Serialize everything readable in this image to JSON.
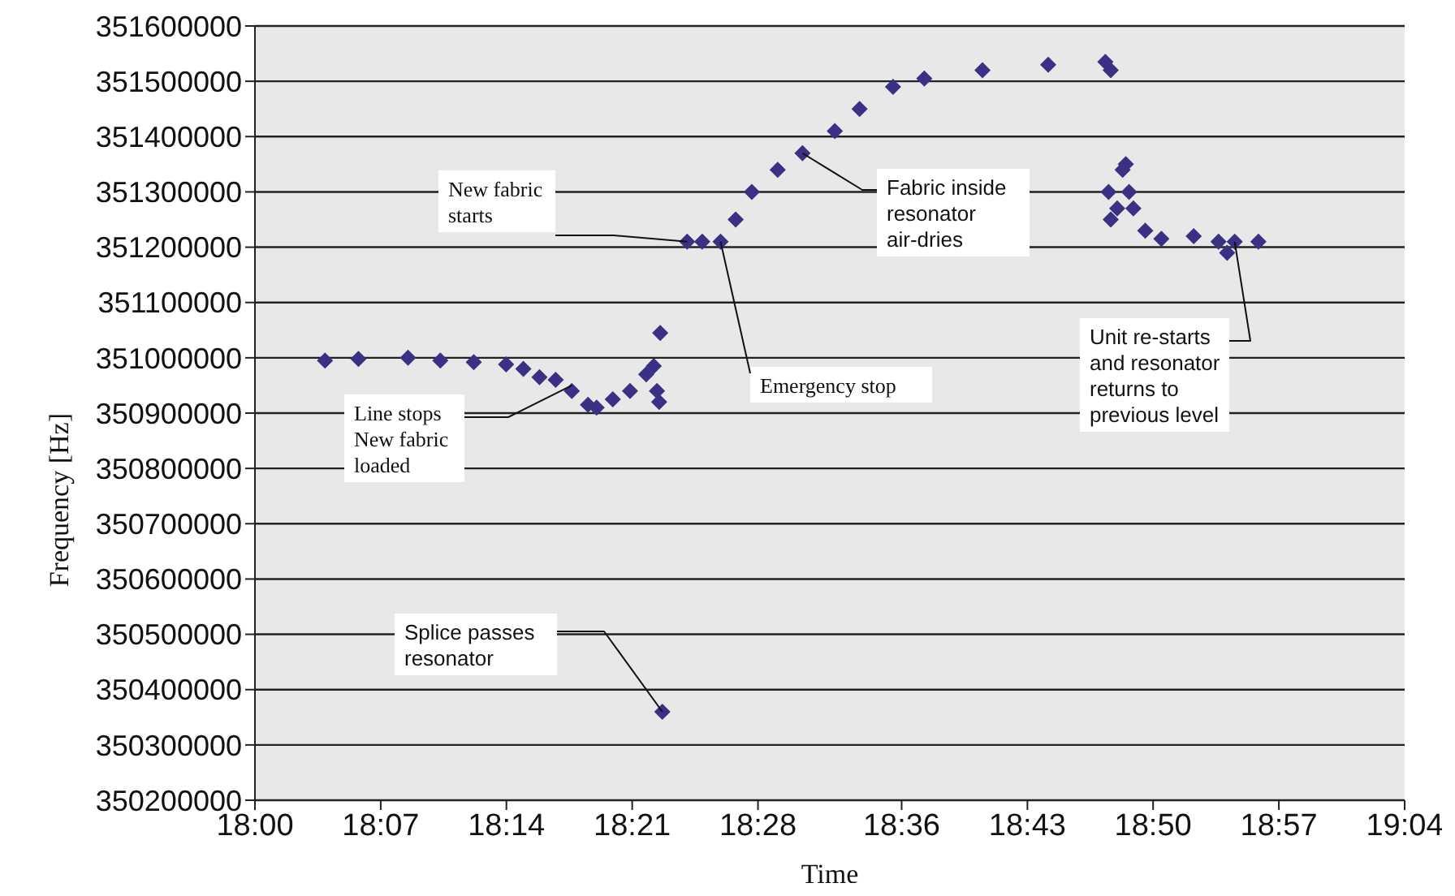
{
  "chart_data": {
    "type": "scatter",
    "xlabel": "Time",
    "ylabel": "Frequency [Hz]",
    "marker": "diamond",
    "grid": "y",
    "legend": false,
    "xlim": [
      18,
      19.0667
    ],
    "xticks": [
      {
        "value": 18,
        "label": "18:00"
      },
      {
        "value": 18.1167,
        "label": "18:07"
      },
      {
        "value": 18.2333,
        "label": "18:14"
      },
      {
        "value": 18.35,
        "label": "18:21"
      },
      {
        "value": 18.4667,
        "label": "18:28"
      },
      {
        "value": 18.6,
        "label": "18:36"
      },
      {
        "value": 18.7167,
        "label": "18:43"
      },
      {
        "value": 18.8333,
        "label": "18:50"
      },
      {
        "value": 18.95,
        "label": "18:57"
      },
      {
        "value": 19.0667,
        "label": "19:04"
      }
    ],
    "ylim": [
      350200000,
      351600000
    ],
    "yticks": [
      350200000,
      350300000,
      350400000,
      350500000,
      350600000,
      350700000,
      350800000,
      350900000,
      351000000,
      351100000,
      351200000,
      351300000,
      351400000,
      351500000,
      351600000
    ],
    "series": [
      {
        "color": "#3a3185",
        "x": [
          18.065,
          18.096,
          18.142,
          18.172,
          18.203,
          18.233,
          18.249,
          18.264,
          18.279,
          18.294,
          18.309,
          18.317,
          18.332,
          18.348,
          18.363,
          18.37,
          18.373,
          18.375,
          18.376,
          18.378,
          18.401,
          18.415,
          18.432,
          18.446,
          18.461,
          18.485,
          18.508,
          18.538,
          18.561,
          18.592,
          18.621,
          18.675,
          18.736,
          18.789,
          18.794,
          18.792,
          18.794,
          18.8,
          18.805,
          18.808,
          18.811,
          18.815,
          18.826,
          18.841,
          18.871,
          18.894,
          18.902,
          18.909,
          18.931
        ],
        "values": [
          350995000,
          350998000,
          351000000,
          350995000,
          350992000,
          350988000,
          350980000,
          350965000,
          350960000,
          350940000,
          350915000,
          350910000,
          350925000,
          350940000,
          350970000,
          350985000,
          350940000,
          350920000,
          351045000,
          350360000,
          351210000,
          351210000,
          351210000,
          351250000,
          351300000,
          351340000,
          351370000,
          351410000,
          351450000,
          351490000,
          351505000,
          351520000,
          351530000,
          351535000,
          351520000,
          351300000,
          351250000,
          351270000,
          351340000,
          351350000,
          351300000,
          351270000,
          351230000,
          351215000,
          351220000,
          351210000,
          351190000,
          351210000,
          351210000
        ]
      }
    ],
    "annotations": [
      {
        "text": "New fabric\nstarts",
        "x": 18.401,
        "y": 351210000
      },
      {
        "text": "Line stops\nNew fabric\nloaded",
        "x": 18.294,
        "y": 350950000
      },
      {
        "text": "Emergency stop",
        "x": 18.432,
        "y": 351210000
      },
      {
        "text": "Fabric inside\nresonator\nair-dries",
        "x": 18.508,
        "y": 351370000
      },
      {
        "text": "Unit re-starts\nand resonator\nreturns to\nprevious level",
        "x": 18.909,
        "y": 351210000
      },
      {
        "text": "Splice passes\nresonator",
        "x": 18.378,
        "y": 350360000
      }
    ]
  }
}
